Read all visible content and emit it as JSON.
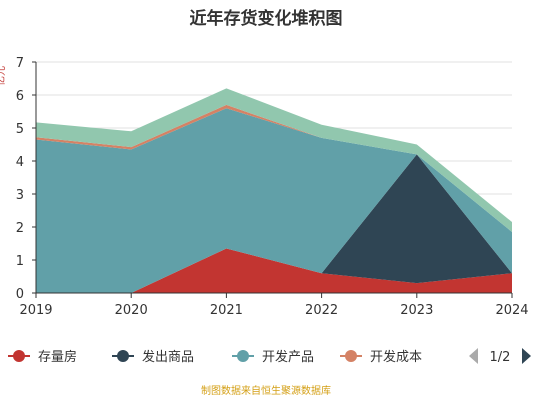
{
  "chart_data": {
    "type": "area",
    "title": "近年存货变化堆积图",
    "ylabel": "亿元",
    "categories": [
      "2019",
      "2020",
      "2021",
      "2022",
      "2023",
      "2024"
    ],
    "ylim": [
      0,
      7
    ],
    "yticks": [
      "0",
      "1",
      "2",
      "3",
      "4",
      "5",
      "6",
      "7"
    ],
    "stacked": true,
    "series": [
      {
        "name": "存量房",
        "color": "#c23531",
        "values": [
          0,
          0,
          1.35,
          0.6,
          0.3,
          0.6
        ]
      },
      {
        "name": "发出商品",
        "color": "#2f4554",
        "values": [
          0,
          0,
          0,
          0,
          3.9,
          0
        ]
      },
      {
        "name": "开发产品",
        "color": "#61a0a8",
        "values": [
          4.65,
          4.35,
          4.25,
          4.1,
          0,
          1.25
        ]
      },
      {
        "name": "开发成本",
        "color": "#d48265",
        "values": [
          0.07,
          0.07,
          0.1,
          0,
          0,
          0
        ]
      },
      {
        "name": "",
        "color": "#91c7ae",
        "values": [
          0.45,
          0.48,
          0.5,
          0.4,
          0.3,
          0.3
        ]
      }
    ],
    "grid": true,
    "legend_placement": "bottom",
    "legend_page": "1/2"
  },
  "footer": "制图数据来自恒生聚源数据库"
}
